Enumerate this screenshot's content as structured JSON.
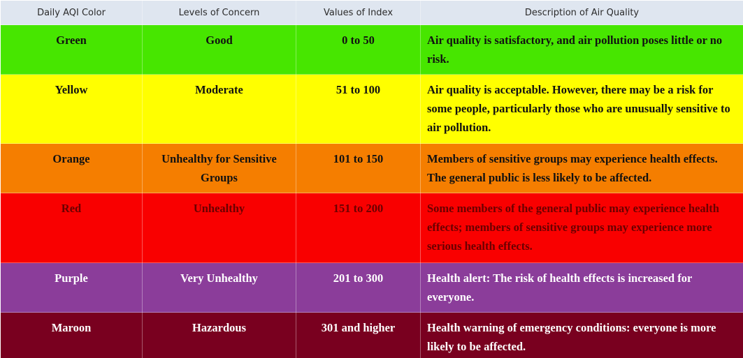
{
  "headers": [
    "Daily AQI Color",
    "Levels of Concern",
    "Values of Index",
    "Description of Air Quality"
  ],
  "rows": [
    {
      "color": "Green",
      "level": "Good",
      "values": "0 to 50",
      "description": "Air quality is satisfactory, and air pollution poses little or no risk.",
      "bg": "#47e600",
      "fg": "#111111"
    },
    {
      "color": "Yellow",
      "level": "Moderate",
      "values": "51 to 100",
      "description": "Air quality is acceptable. However, there may be a risk for some people, particularly those who are unusually sensitive to air pollution.",
      "bg": "#ffff00",
      "fg": "#111111"
    },
    {
      "color": "Orange",
      "level": "Unhealthy for Sensitive Groups",
      "values": "101 to 150",
      "description": "Members of sensitive groups may experience health effects. The general public is less likely to be affected.",
      "bg": "#f57e00",
      "fg": "#111111"
    },
    {
      "color": "Red",
      "level": "Unhealthy",
      "values": "151 to 200",
      "description": "Some members of the general public may experience health effects; members of sensitive groups may experience more serious health effects.",
      "bg": "#f90000",
      "fg": "#6a0000"
    },
    {
      "color": "Purple",
      "level": "Very Unhealthy",
      "values": "201 to 300",
      "description": "Health alert: The risk of health effects is increased for everyone.",
      "bg": "#8b3d9a",
      "fg": "#ffffff"
    },
    {
      "color": "Maroon",
      "level": "Hazardous",
      "values": "301 and higher",
      "description": "Health warning of emergency conditions: everyone is more likely to be affected.",
      "bg": "#79001f",
      "fg": "#ffffff"
    }
  ]
}
